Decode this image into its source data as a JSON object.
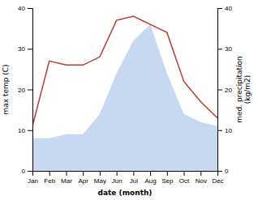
{
  "chart_data": {
    "type": "line",
    "categories": [
      "Jan",
      "Feb",
      "Mar",
      "Apr",
      "May",
      "Jun",
      "Jul",
      "Aug",
      "Sep",
      "Oct",
      "Nov",
      "Dec"
    ],
    "series": [
      {
        "type": "area",
        "axis": "y2",
        "color": "#c8d8f0",
        "values": [
          8,
          8,
          9,
          9,
          14,
          24,
          32,
          36,
          24,
          14,
          12,
          11
        ]
      },
      {
        "type": "line",
        "color": "#c0392b",
        "values": [
          11,
          27,
          26,
          26,
          28,
          37,
          38,
          36,
          34,
          22,
          17,
          13
        ]
      }
    ],
    "xlabel": "date (month)",
    "ylabel": "max temp (C)",
    "y2label": "med. precipitation\n(kg/m2)",
    "ylim": [
      0,
      40
    ],
    "yticks": [
      0,
      10,
      20,
      30,
      40
    ],
    "y2lim": [
      0,
      40
    ],
    "y2ticks": [
      0,
      10,
      20,
      30,
      40
    ],
    "grid": false
  }
}
